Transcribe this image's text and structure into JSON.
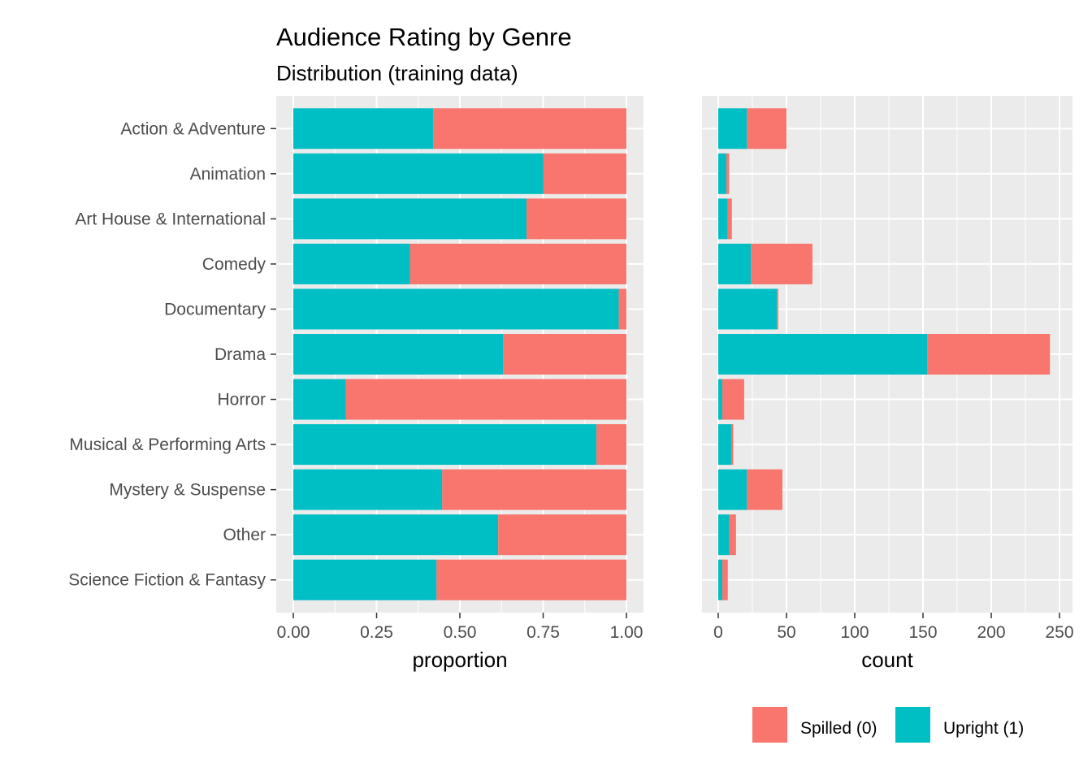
{
  "chart_data": {
    "title": "Audience Rating by Genre",
    "subtitle": "Distribution (training data)",
    "categories": [
      "Action & Adventure",
      "Animation",
      "Art House & International",
      "Comedy",
      "Documentary",
      "Drama",
      "Horror",
      "Musical & Performing Arts",
      "Mystery & Suspense",
      "Other",
      "Science Fiction & Fantasy"
    ],
    "colors": {
      "spilled": "#F8766D",
      "upright": "#00BFC4",
      "panel": "#EBEBEB",
      "grid": "#FFFFFF"
    },
    "legend": {
      "position": "bottom-right",
      "items": [
        {
          "label": "Spilled (0)",
          "color": "#F8766D"
        },
        {
          "label": "Upright (1)",
          "color": "#00BFC4"
        }
      ]
    },
    "panels": [
      {
        "type": "bar",
        "orientation": "horizontal",
        "stacked": true,
        "xlabel": "proportion",
        "xlim": [
          0,
          1
        ],
        "ticks": [
          0,
          0.25,
          0.5,
          0.75,
          1
        ],
        "tick_labels": [
          "0.00",
          "0.25",
          "0.50",
          "0.75",
          "1.00"
        ],
        "series": [
          {
            "name": "Upright (1)",
            "values": [
              0.42,
              0.75,
              0.7,
              0.35,
              0.977,
              0.63,
              0.158,
              0.91,
              0.447,
              0.615,
              0.43
            ]
          },
          {
            "name": "Spilled (0)",
            "values": [
              0.58,
              0.25,
              0.3,
              0.65,
              0.023,
              0.37,
              0.842,
              0.09,
              0.553,
              0.385,
              0.57
            ]
          }
        ]
      },
      {
        "type": "bar",
        "orientation": "horizontal",
        "stacked": true,
        "xlabel": "count",
        "xlim": [
          0,
          250
        ],
        "ticks": [
          0,
          50,
          100,
          150,
          200,
          250
        ],
        "tick_labels": [
          "0",
          "50",
          "100",
          "150",
          "200",
          "250"
        ],
        "series": [
          {
            "name": "Upright (1)",
            "values": [
              21,
              6,
              7,
              24,
              43,
              153,
              3,
              10,
              21,
              8,
              3
            ]
          },
          {
            "name": "Spilled (0)",
            "values": [
              29,
              2,
              3,
              45,
              1,
              90,
              16,
              1,
              26,
              5,
              4
            ]
          }
        ]
      }
    ]
  }
}
